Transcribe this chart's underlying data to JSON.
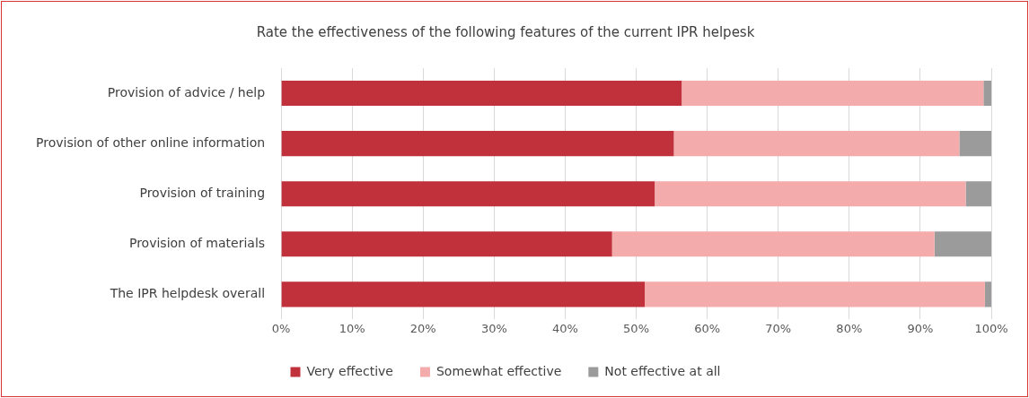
{
  "chart_data": {
    "type": "bar",
    "orientation": "horizontal",
    "stacked": true,
    "title": "Rate the effectiveness of the following features of the current IPR helpesk",
    "categories": [
      "Provision of advice / help",
      "Provision of other online information",
      "Provision of training",
      "Provision of materials",
      "The IPR helpdesk overall"
    ],
    "series": [
      {
        "name": "Very effective",
        "color": "#c0313c",
        "values": [
          56.4,
          55.3,
          52.6,
          46.6,
          51.2
        ]
      },
      {
        "name": "Somewhat effective",
        "color": "#f4abab",
        "values": [
          42.5,
          40.2,
          43.8,
          45.4,
          47.9
        ]
      },
      {
        "name": "Not effective at all",
        "color": "#9b9b9b",
        "values": [
          1.1,
          4.5,
          3.6,
          8.0,
          0.9
        ]
      }
    ],
    "xlim": [
      0,
      100
    ],
    "xticks": [
      {
        "value": 0,
        "label": "0%"
      },
      {
        "value": 10,
        "label": "10%"
      },
      {
        "value": 20,
        "label": "20%"
      },
      {
        "value": 30,
        "label": "30%"
      },
      {
        "value": 40,
        "label": "40%"
      },
      {
        "value": 50,
        "label": "50%"
      },
      {
        "value": 60,
        "label": "60%"
      },
      {
        "value": 70,
        "label": "70%"
      },
      {
        "value": 80,
        "label": "80%"
      },
      {
        "value": 90,
        "label": "90%"
      },
      {
        "value": 100,
        "label": "100%"
      }
    ],
    "grid": "x",
    "legend": "bottom"
  }
}
